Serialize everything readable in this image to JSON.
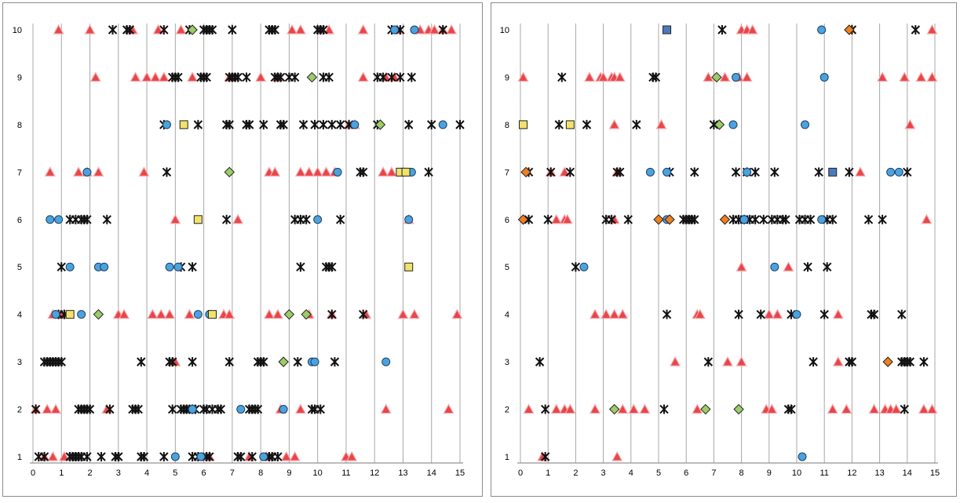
{
  "chart_data": [
    {
      "type": "scatter",
      "xlim": [
        0,
        15
      ],
      "ylim": [
        1,
        10
      ],
      "x_ticks": [
        "0",
        "1",
        "2",
        "3",
        "4",
        "5",
        "6",
        "7",
        "8",
        "9",
        "10",
        "11",
        "12",
        "13",
        "14",
        "15"
      ],
      "y_ticks": [
        "1",
        "2",
        "3",
        "4",
        "5",
        "6",
        "7",
        "8",
        "9",
        "10"
      ],
      "grid": "vertical",
      "legend": "none",
      "series": [
        {
          "marker": "triangle",
          "color": "#e8454a",
          "x": [
            0.9,
            2,
            3.5,
            4.4,
            5.2,
            9.1,
            9.4,
            10.4,
            11.6,
            12.8,
            13.6,
            13.9,
            14.1,
            14.4,
            14.7,
            2.2,
            3.6,
            4.0,
            4.3,
            4.6,
            5.6,
            6.9,
            8.0,
            8.6,
            11.6,
            12.4,
            12.7,
            11.1,
            11.3,
            0.6,
            1.6,
            1.9,
            2.3,
            3.9,
            8.3,
            8.5,
            9.4,
            9.7,
            10.0,
            10.3,
            10.6,
            12.3,
            12.6,
            5.0,
            7.2,
            13.2,
            0.7,
            1.0,
            3.0,
            3.2,
            4.2,
            4.5,
            4.8,
            5.5,
            6.7,
            6.9,
            8.3,
            8.6,
            9.7,
            10.5,
            11.7,
            13.0,
            13.4,
            14.9,
            5.0,
            0.1,
            0.5,
            0.8,
            2.6,
            8.7,
            9.4,
            12.4,
            14.6,
            0.4,
            0.7,
            1.1,
            6.2,
            7.6,
            8.2,
            8.9,
            9.2,
            11.0,
            11.2
          ],
          "y": [
            10,
            10,
            10,
            10,
            10,
            10,
            10,
            10,
            10,
            10,
            10,
            10,
            10,
            10,
            10,
            9,
            9,
            9,
            9,
            9,
            9,
            9,
            9,
            9,
            9,
            9,
            9,
            8,
            8,
            7,
            7,
            7,
            7,
            7,
            7,
            7,
            7,
            7,
            7,
            7,
            7,
            7,
            7,
            6,
            6,
            6,
            4,
            4,
            4,
            4,
            4,
            4,
            4,
            4,
            4,
            4,
            4,
            4,
            4,
            4,
            4,
            4,
            4,
            4,
            3,
            2,
            2,
            2,
            2,
            2,
            2,
            2,
            2,
            1,
            1,
            1,
            1,
            1,
            1,
            1,
            1,
            1,
            1
          ]
        },
        {
          "marker": "asterisk",
          "color": "#111111",
          "x": [
            2.8,
            3.3,
            3.4,
            4.6,
            5.5,
            6.0,
            6.1,
            6.2,
            6.3,
            7.0,
            8.3,
            8.4,
            8.5,
            10.0,
            10.1,
            10.2,
            12.6,
            12.9,
            14.4,
            4.9,
            5.0,
            5.1,
            5.9,
            6.0,
            6.1,
            6.9,
            7.0,
            7.1,
            7.2,
            7.5,
            8.5,
            8.6,
            8.7,
            9.0,
            9.2,
            10.2,
            10.4,
            12.1,
            12.3,
            12.6,
            12.9,
            13.3,
            4.6,
            5.8,
            6.8,
            6.9,
            7.5,
            7.6,
            8.1,
            8.7,
            8.8,
            9.5,
            9.9,
            10.2,
            10.5,
            10.8,
            11.1,
            12.1,
            13.2,
            14.0,
            15.0,
            4.7,
            11.5,
            11.6,
            13.9,
            1.3,
            1.5,
            1.7,
            1.8,
            1.9,
            2.6,
            6.8,
            9.2,
            9.4,
            9.6,
            10.8,
            1.0,
            5.2,
            5.6,
            9.4,
            10.3,
            10.4,
            10.5,
            0.9,
            1.1,
            10.5,
            11.6,
            0.4,
            0.5,
            0.6,
            0.7,
            0.8,
            0.9,
            1.0,
            3.8,
            4.8,
            4.9,
            5.6,
            6.9,
            7.9,
            8.0,
            8.1,
            9.3,
            10.6,
            0.1,
            1.6,
            1.7,
            1.8,
            1.9,
            2.0,
            2.7,
            3.5,
            3.6,
            3.7,
            4.9,
            5.2,
            5.3,
            5.4,
            5.5,
            5.6,
            5.7,
            6.0,
            6.1,
            6.3,
            6.5,
            6.6,
            7.6,
            7.7,
            7.8,
            7.9,
            9.8,
            9.9,
            10.1,
            0.2,
            0.4,
            1.3,
            1.4,
            1.5,
            1.6,
            1.7,
            1.9,
            2.4,
            2.9,
            3.0,
            3.8,
            3.9,
            4.6,
            5.6,
            5.8,
            6.1,
            6.2,
            7.2,
            7.3,
            7.7,
            8.3,
            8.4,
            8.6
          ],
          "y": [
            10,
            10,
            10,
            10,
            10,
            10,
            10,
            10,
            10,
            10,
            10,
            10,
            10,
            10,
            10,
            10,
            10,
            10,
            10,
            9,
            9,
            9,
            9,
            9,
            9,
            9,
            9,
            9,
            9,
            9,
            9,
            9,
            9,
            9,
            9,
            9,
            9,
            9,
            9,
            9,
            9,
            9,
            8,
            8,
            8,
            8,
            8,
            8,
            8,
            8,
            8,
            8,
            8,
            8,
            8,
            8,
            8,
            8,
            8,
            8,
            8,
            7,
            7,
            7,
            7,
            6,
            6,
            6,
            6,
            6,
            6,
            6,
            6,
            6,
            6,
            6,
            5,
            5,
            5,
            5,
            5,
            5,
            5,
            4,
            4,
            4,
            4,
            3,
            3,
            3,
            3,
            3,
            3,
            3,
            3,
            3,
            3,
            3,
            3,
            3,
            3,
            3,
            3,
            3,
            2,
            2,
            2,
            2,
            2,
            2,
            2,
            2,
            2,
            2,
            2,
            2,
            2,
            2,
            2,
            2,
            2,
            2,
            2,
            2,
            2,
            2,
            2,
            2,
            2,
            2,
            2,
            2,
            2,
            1,
            1,
            1,
            1,
            1,
            1,
            1,
            1,
            1,
            1,
            1,
            1,
            1,
            1,
            1,
            1,
            1,
            1,
            1,
            1,
            1,
            1,
            1,
            1
          ]
        },
        {
          "marker": "circle",
          "color": "#4aa3df",
          "x": [
            12.7,
            13.4,
            4.7,
            11.3,
            14.4,
            1.9,
            10.7,
            13.3,
            0.6,
            0.9,
            10.0,
            13.2,
            1.3,
            2.3,
            2.5,
            4.8,
            5.1,
            0.8,
            1.7,
            5.8,
            6.2,
            9.8,
            9.9,
            12.4,
            5.6,
            7.3,
            8.8,
            5.0,
            5.9,
            8.1
          ],
          "y": [
            10,
            10,
            8,
            8,
            8,
            7,
            7,
            7,
            6,
            6,
            6,
            6,
            5,
            5,
            5,
            5,
            5,
            4,
            4,
            4,
            4,
            3,
            3,
            3,
            2,
            2,
            2,
            1,
            1,
            1
          ]
        },
        {
          "marker": "square",
          "color": "#f2e26b",
          "x": [
            5.3,
            12.9,
            13.1,
            5.8,
            13.2,
            1.3,
            6.3
          ],
          "y": [
            8,
            7,
            7,
            6,
            5,
            4,
            4
          ]
        },
        {
          "marker": "diamond",
          "color": "#9ccc65",
          "x": [
            5.6,
            9.8,
            12.2,
            6.9,
            2.3,
            9.0,
            9.6,
            8.8
          ],
          "y": [
            10,
            9,
            8,
            7,
            4,
            4,
            4,
            3
          ]
        }
      ]
    },
    {
      "type": "scatter",
      "xlim": [
        0,
        15
      ],
      "ylim": [
        1,
        10
      ],
      "x_ticks": [
        "0",
        "1",
        "2",
        "3",
        "4",
        "5",
        "6",
        "7",
        "8",
        "9",
        "10",
        "11",
        "12",
        "13",
        "14",
        "15"
      ],
      "y_ticks": [
        "1",
        "2",
        "3",
        "4",
        "5",
        "6",
        "7",
        "8",
        "9",
        "10"
      ],
      "grid": "vertical",
      "legend": "none",
      "series": [
        {
          "marker": "triangle",
          "color": "#e8454a",
          "x": [
            8.0,
            8.2,
            8.4,
            14.9,
            0.1,
            2.5,
            2.9,
            3.0,
            3.3,
            3.4,
            3.6,
            6.8,
            7.4,
            7.9,
            8.2,
            13.1,
            13.9,
            14.5,
            14.9,
            3.4,
            5.1,
            14.1,
            1.1,
            1.6,
            3.5,
            12.3,
            1.3,
            1.6,
            1.7,
            3.4,
            14.7,
            8.0,
            9.7,
            2.7,
            3.1,
            3.4,
            3.7,
            6.4,
            6.5,
            9.0,
            9.3,
            11.5,
            5.6,
            7.5,
            8.0,
            11.5,
            0.3,
            1.3,
            1.6,
            1.8,
            2.7,
            3.7,
            4.1,
            4.5,
            6.4,
            8.9,
            9.1,
            11.3,
            11.8,
            12.8,
            13.2,
            13.4,
            13.6,
            14.6,
            14.9,
            0.8,
            3.5
          ],
          "y": [
            10,
            10,
            10,
            10,
            9,
            9,
            9,
            9,
            9,
            9,
            9,
            9,
            9,
            9,
            9,
            9,
            9,
            9,
            9,
            8,
            8,
            8,
            7,
            7,
            7,
            7,
            6,
            6,
            6,
            6,
            6,
            5,
            5,
            4,
            4,
            4,
            4,
            4,
            4,
            4,
            4,
            4,
            3,
            3,
            3,
            3,
            2,
            2,
            2,
            2,
            2,
            2,
            2,
            2,
            2,
            2,
            2,
            2,
            2,
            2,
            2,
            2,
            2,
            2,
            2,
            1,
            1
          ]
        },
        {
          "marker": "asterisk",
          "color": "#111111",
          "x": [
            7.3,
            12.0,
            14.3,
            1.5,
            4.8,
            4.9,
            1.4,
            2.4,
            4.2,
            7.0,
            0.3,
            1.1,
            1.8,
            3.5,
            3.6,
            5.4,
            6.3,
            7.8,
            8.2,
            8.5,
            9.2,
            10.8,
            11.9,
            14.0,
            0.3,
            1.0,
            3.1,
            3.3,
            3.9,
            5.9,
            6.0,
            6.1,
            6.2,
            6.3,
            7.7,
            7.9,
            8.1,
            8.3,
            8.5,
            8.8,
            9.1,
            9.3,
            9.5,
            9.6,
            10.1,
            10.3,
            10.5,
            11.1,
            11.3,
            12.6,
            13.1,
            2.0,
            10.4,
            11.1,
            5.3,
            7.9,
            8.7,
            9.8,
            11.0,
            12.7,
            12.8,
            13.8,
            0.7,
            6.8,
            10.6,
            11.9,
            12.0,
            13.8,
            13.9,
            14.0,
            14.1,
            14.6,
            0.9,
            5.2,
            9.7,
            9.8,
            13.9,
            0.9
          ],
          "y": [
            10,
            10,
            10,
            9,
            9,
            9,
            8,
            8,
            8,
            8,
            7,
            7,
            7,
            7,
            7,
            7,
            7,
            7,
            7,
            7,
            7,
            7,
            7,
            7,
            6,
            6,
            6,
            6,
            6,
            6,
            6,
            6,
            6,
            6,
            6,
            6,
            6,
            6,
            6,
            6,
            6,
            6,
            6,
            6,
            6,
            6,
            6,
            6,
            6,
            6,
            6,
            5,
            5,
            5,
            4,
            4,
            4,
            4,
            4,
            4,
            4,
            4,
            3,
            3,
            3,
            3,
            3,
            3,
            3,
            3,
            3,
            3,
            2,
            2,
            2,
            2,
            2,
            1
          ]
        },
        {
          "marker": "circle",
          "color": "#4aa3df",
          "x": [
            10.9,
            7.8,
            11.0,
            7.7,
            10.3,
            4.7,
            5.3,
            8.2,
            13.4,
            13.7,
            5.3,
            8.1,
            10.9,
            2.3,
            9.2,
            10.0,
            10.2
          ],
          "y": [
            10,
            9,
            9,
            8,
            8,
            7,
            7,
            7,
            7,
            7,
            6,
            6,
            6,
            5,
            5,
            4,
            1
          ]
        },
        {
          "marker": "square",
          "color": "#4a7bbf",
          "x": [
            5.3,
            11.3
          ],
          "y": [
            10,
            7
          ]
        },
        {
          "marker": "square",
          "color": "#f2e26b",
          "x": [
            0.1,
            1.8
          ],
          "y": [
            8,
            8
          ]
        },
        {
          "marker": "diamond",
          "color": "#f07f1d",
          "x": [
            11.9,
            0.2,
            0.1,
            5.0,
            5.4,
            7.4,
            13.3
          ],
          "y": [
            10,
            7,
            6,
            6,
            6,
            6,
            3
          ]
        },
        {
          "marker": "diamond",
          "color": "#9ccc65",
          "x": [
            7.1,
            7.2,
            3.4,
            6.7,
            7.9
          ],
          "y": [
            9,
            8,
            2,
            2,
            2
          ]
        }
      ]
    }
  ]
}
